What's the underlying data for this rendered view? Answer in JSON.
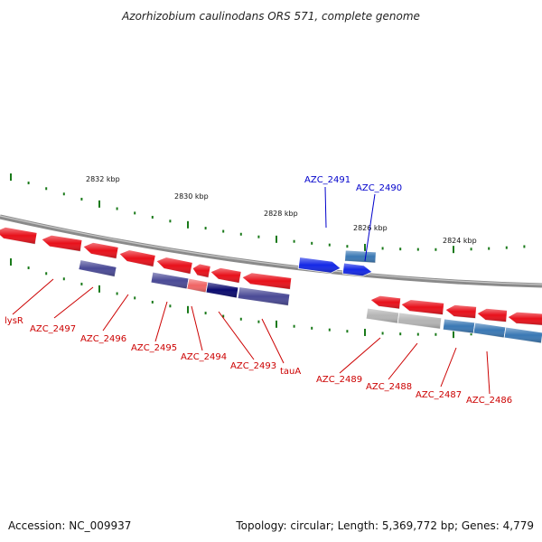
{
  "title": "Azorhizobium caulinodans ORS 571, complete genome",
  "footer": {
    "accession": "Accession: NC_009937",
    "summary": "Topology: circular; Length: 5,369,772 bp; Genes: 4,779"
  },
  "colors": {
    "forward_label": "#0000cc",
    "reverse_label": "#cc0000",
    "backbone": "#808080",
    "ticks": "#1a7a1a",
    "gene_red": "#e8101a",
    "gene_blue": "#1428e6",
    "gene_navy": "#0a0a6e",
    "gene_slate": "#4a4a96",
    "gene_steel": "#3a78b4",
    "gene_gray": "#b4b4b4",
    "gene_pink": "#f06464"
  },
  "scale_labels": [
    "2832 kbp",
    "2830 kbp",
    "2828 kbp",
    "2826 kbp",
    "2824 kbp"
  ],
  "gene_labels": {
    "forward": [
      "AZC_2491",
      "AZC_2490"
    ],
    "reverse": [
      "lysR",
      "AZC_2497",
      "AZC_2496",
      "AZC_2495",
      "AZC_2494",
      "AZC_2493",
      "tauA",
      "AZC_2489",
      "AZC_2488",
      "AZC_2487",
      "AZC_2486"
    ]
  }
}
